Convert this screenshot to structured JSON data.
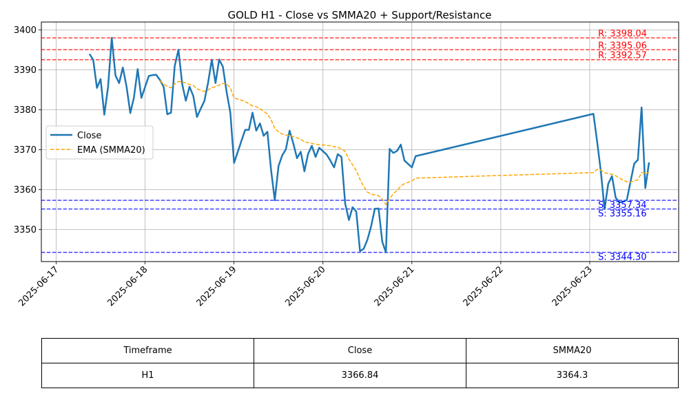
{
  "chart_data": {
    "type": "line",
    "title": "GOLD H1 - Close vs SMMA20 + Support/Resistance",
    "xlabel": "",
    "ylabel": "",
    "ylim": [
      3342,
      3402
    ],
    "xlim": [
      "2025-06-16T20:00",
      "2025-06-24T00:00"
    ],
    "x_ticks": [
      "2025-06-17",
      "2025-06-18",
      "2025-06-19",
      "2025-06-20",
      "2025-06-21",
      "2025-06-22",
      "2025-06-23"
    ],
    "y_ticks": [
      3350,
      3360,
      3370,
      3380,
      3390,
      3400
    ],
    "grid": true,
    "legend_position": "center-left",
    "series": [
      {
        "name": "Close",
        "color": "#1f77b4",
        "style": "solid",
        "points": [
          [
            "2025-06-17T09:00",
            3394.0
          ],
          [
            "2025-06-17T10:00",
            3392.5
          ],
          [
            "2025-06-17T11:00",
            3385.5
          ],
          [
            "2025-06-17T12:00",
            3387.7
          ],
          [
            "2025-06-17T13:00",
            3378.8
          ],
          [
            "2025-06-17T14:00",
            3385.7
          ],
          [
            "2025-06-17T15:00",
            3398.04
          ],
          [
            "2025-06-17T16:00",
            3388.6
          ],
          [
            "2025-06-17T17:00",
            3386.7
          ],
          [
            "2025-06-17T18:00",
            3390.6
          ],
          [
            "2025-06-17T19:00",
            3385.8
          ],
          [
            "2025-06-17T20:00",
            3379.2
          ],
          [
            "2025-06-17T21:00",
            3383.1
          ],
          [
            "2025-06-17T22:00",
            3390.2
          ],
          [
            "2025-06-17T23:00",
            3383.0
          ],
          [
            "2025-06-18T01:00",
            3388.5
          ],
          [
            "2025-06-18T02:00",
            3388.7
          ],
          [
            "2025-06-18T03:00",
            3388.8
          ],
          [
            "2025-06-18T04:00",
            3387.5
          ],
          [
            "2025-06-18T05:00",
            3385.8
          ],
          [
            "2025-06-18T06:00",
            3378.9
          ],
          [
            "2025-06-18T07:00",
            3379.3
          ],
          [
            "2025-06-18T08:00",
            3391.0
          ],
          [
            "2025-06-18T09:00",
            3395.06
          ],
          [
            "2025-06-18T10:00",
            3386.5
          ],
          [
            "2025-06-18T11:00",
            3382.3
          ],
          [
            "2025-06-18T12:00",
            3385.8
          ],
          [
            "2025-06-18T13:00",
            3383.5
          ],
          [
            "2025-06-18T14:00",
            3378.2
          ],
          [
            "2025-06-18T15:00",
            3380.3
          ],
          [
            "2025-06-18T16:00",
            3382.2
          ],
          [
            "2025-06-18T17:00",
            3386.8
          ],
          [
            "2025-06-18T18:00",
            3392.57
          ],
          [
            "2025-06-18T19:00",
            3386.7
          ],
          [
            "2025-06-18T20:00",
            3392.6
          ],
          [
            "2025-06-18T21:00",
            3390.8
          ],
          [
            "2025-06-18T22:00",
            3384.5
          ],
          [
            "2025-06-18T23:00",
            3379.3
          ],
          [
            "2025-06-19T00:00",
            3366.7
          ],
          [
            "2025-06-19T03:00",
            3375.0
          ],
          [
            "2025-06-19T04:00",
            3375.0
          ],
          [
            "2025-06-19T05:00",
            3379.3
          ],
          [
            "2025-06-19T06:00",
            3374.8
          ],
          [
            "2025-06-19T07:00",
            3376.6
          ],
          [
            "2025-06-19T08:00",
            3373.5
          ],
          [
            "2025-06-19T09:00",
            3374.5
          ],
          [
            "2025-06-19T10:00",
            3365.0
          ],
          [
            "2025-06-19T11:00",
            3357.34
          ],
          [
            "2025-06-19T12:00",
            3365.9
          ],
          [
            "2025-06-19T13:00",
            3368.6
          ],
          [
            "2025-06-19T14:00",
            3370.1
          ],
          [
            "2025-06-19T15:00",
            3374.8
          ],
          [
            "2025-06-19T16:00",
            3371.6
          ],
          [
            "2025-06-19T17:00",
            3367.9
          ],
          [
            "2025-06-19T18:00",
            3369.5
          ],
          [
            "2025-06-19T19:00",
            3364.6
          ],
          [
            "2025-06-19T20:00",
            3369.0
          ],
          [
            "2025-06-19T21:00",
            3371.0
          ],
          [
            "2025-06-19T22:00",
            3368.2
          ],
          [
            "2025-06-19T23:00",
            3370.5
          ],
          [
            "2025-06-20T01:00",
            3368.8
          ],
          [
            "2025-06-20T02:00",
            3367.3
          ],
          [
            "2025-06-20T03:00",
            3365.6
          ],
          [
            "2025-06-20T04:00",
            3368.9
          ],
          [
            "2025-06-20T05:00",
            3368.2
          ],
          [
            "2025-06-20T06:00",
            3356.5
          ],
          [
            "2025-06-20T07:00",
            3352.4
          ],
          [
            "2025-06-20T08:00",
            3355.6
          ],
          [
            "2025-06-20T09:00",
            3354.5
          ],
          [
            "2025-06-20T10:00",
            3344.6
          ],
          [
            "2025-06-20T11:00",
            3345.2
          ],
          [
            "2025-06-20T12:00",
            3347.5
          ],
          [
            "2025-06-20T13:00",
            3350.8
          ],
          [
            "2025-06-20T14:00",
            3355.2
          ],
          [
            "2025-06-20T15:00",
            3355.3
          ],
          [
            "2025-06-20T16:00",
            3347.0
          ],
          [
            "2025-06-20T17:00",
            3344.3
          ],
          [
            "2025-06-20T18:00",
            3370.2
          ],
          [
            "2025-06-20T19:00",
            3369.2
          ],
          [
            "2025-06-20T20:00",
            3369.7
          ],
          [
            "2025-06-20T21:00",
            3371.3
          ],
          [
            "2025-06-20T22:00",
            3367.3
          ],
          [
            "2025-06-21T00:00",
            3365.6
          ],
          [
            "2025-06-21T01:00",
            3368.4
          ],
          [
            "2025-06-23T01:00",
            3379.0
          ],
          [
            "2025-06-23T02:00",
            3372.0
          ],
          [
            "2025-06-23T03:00",
            3364.5
          ],
          [
            "2025-06-23T04:00",
            3355.16
          ],
          [
            "2025-06-23T05:00",
            3361.5
          ],
          [
            "2025-06-23T06:00",
            3363.4
          ],
          [
            "2025-06-23T07:00",
            3358.0
          ],
          [
            "2025-06-23T08:00",
            3356.8
          ],
          [
            "2025-06-23T09:00",
            3357.0
          ],
          [
            "2025-06-23T10:00",
            3357.4
          ],
          [
            "2025-06-23T11:00",
            3362.0
          ],
          [
            "2025-06-23T12:00",
            3366.5
          ],
          [
            "2025-06-23T13:00",
            3367.5
          ],
          [
            "2025-06-23T14:00",
            3380.6
          ],
          [
            "2025-06-23T15:00",
            3360.4
          ],
          [
            "2025-06-23T16:00",
            3366.84
          ]
        ]
      },
      {
        "name": "EMA (SMMA20)",
        "color": "#ffa500",
        "style": "dashed",
        "points": [
          [
            "2025-06-18T04:00",
            3387.3
          ],
          [
            "2025-06-18T05:00",
            3386.5
          ],
          [
            "2025-06-18T06:00",
            3385.9
          ],
          [
            "2025-06-18T07:00",
            3385.5
          ],
          [
            "2025-06-18T08:00",
            3386.5
          ],
          [
            "2025-06-18T09:00",
            3387.1
          ],
          [
            "2025-06-18T10:00",
            3387.0
          ],
          [
            "2025-06-18T11:00",
            3386.7
          ],
          [
            "2025-06-18T12:00",
            3386.4
          ],
          [
            "2025-06-18T13:00",
            3386.1
          ],
          [
            "2025-06-18T14:00",
            3385.3
          ],
          [
            "2025-06-18T15:00",
            3384.9
          ],
          [
            "2025-06-18T16:00",
            3384.6
          ],
          [
            "2025-06-18T17:00",
            3385.0
          ],
          [
            "2025-06-18T18:00",
            3385.6
          ],
          [
            "2025-06-18T19:00",
            3385.8
          ],
          [
            "2025-06-18T20:00",
            3386.2
          ],
          [
            "2025-06-18T21:00",
            3386.6
          ],
          [
            "2025-06-18T22:00",
            3386.5
          ],
          [
            "2025-06-18T23:00",
            3385.5
          ],
          [
            "2025-06-19T00:00",
            3383.0
          ],
          [
            "2025-06-19T03:00",
            3382.1
          ],
          [
            "2025-06-19T04:00",
            3381.5
          ],
          [
            "2025-06-19T05:00",
            3381.0
          ],
          [
            "2025-06-19T06:00",
            3380.8
          ],
          [
            "2025-06-19T07:00",
            3380.3
          ],
          [
            "2025-06-19T08:00",
            3379.6
          ],
          [
            "2025-06-19T09:00",
            3379.0
          ],
          [
            "2025-06-19T10:00",
            3377.5
          ],
          [
            "2025-06-19T11:00",
            3375.4
          ],
          [
            "2025-06-19T12:00",
            3374.5
          ],
          [
            "2025-06-19T13:00",
            3373.9
          ],
          [
            "2025-06-19T14:00",
            3373.7
          ],
          [
            "2025-06-19T15:00",
            3373.6
          ],
          [
            "2025-06-19T16:00",
            3373.3
          ],
          [
            "2025-06-19T17:00",
            3373.0
          ],
          [
            "2025-06-19T18:00",
            3372.6
          ],
          [
            "2025-06-19T19:00",
            3372.0
          ],
          [
            "2025-06-19T20:00",
            3371.8
          ],
          [
            "2025-06-19T21:00",
            3371.6
          ],
          [
            "2025-06-19T22:00",
            3371.4
          ],
          [
            "2025-06-19T23:00",
            3371.3
          ],
          [
            "2025-06-20T01:00",
            3371.1
          ],
          [
            "2025-06-20T02:00",
            3371.0
          ],
          [
            "2025-06-20T03:00",
            3370.8
          ],
          [
            "2025-06-20T04:00",
            3370.6
          ],
          [
            "2025-06-20T05:00",
            3370.3
          ],
          [
            "2025-06-20T06:00",
            3369.6
          ],
          [
            "2025-06-20T07:00",
            3367.6
          ],
          [
            "2025-06-20T08:00",
            3366.2
          ],
          [
            "2025-06-20T09:00",
            3364.8
          ],
          [
            "2025-06-20T10:00",
            3362.6
          ],
          [
            "2025-06-20T11:00",
            3360.8
          ],
          [
            "2025-06-20T12:00",
            3359.4
          ],
          [
            "2025-06-20T13:00",
            3358.9
          ],
          [
            "2025-06-20T14:00",
            3358.7
          ],
          [
            "2025-06-20T15:00",
            3358.5
          ],
          [
            "2025-06-20T16:00",
            3357.6
          ],
          [
            "2025-06-20T17:00",
            3356.3
          ],
          [
            "2025-06-20T18:00",
            3357.8
          ],
          [
            "2025-06-20T19:00",
            3359.0
          ],
          [
            "2025-06-20T20:00",
            3359.8
          ],
          [
            "2025-06-20T21:00",
            3360.9
          ],
          [
            "2025-06-20T22:00",
            3361.5
          ],
          [
            "2025-06-21T00:00",
            3362.2
          ],
          [
            "2025-06-21T01:00",
            3362.9
          ],
          [
            "2025-06-23T01:00",
            3364.3
          ],
          [
            "2025-06-23T02:00",
            3365.1
          ],
          [
            "2025-06-23T03:00",
            3364.9
          ],
          [
            "2025-06-23T04:00",
            3364.3
          ],
          [
            "2025-06-23T05:00",
            3364.0
          ],
          [
            "2025-06-23T06:00",
            3363.9
          ],
          [
            "2025-06-23T07:00",
            3363.5
          ],
          [
            "2025-06-23T08:00",
            3362.9
          ],
          [
            "2025-06-23T09:00",
            3362.4
          ],
          [
            "2025-06-23T10:00",
            3362.0
          ],
          [
            "2025-06-23T11:00",
            3361.9
          ],
          [
            "2025-06-23T12:00",
            3362.2
          ],
          [
            "2025-06-23T13:00",
            3362.5
          ],
          [
            "2025-06-23T14:00",
            3364.3
          ],
          [
            "2025-06-23T15:00",
            3364.1
          ],
          [
            "2025-06-23T16:00",
            3364.3
          ]
        ]
      }
    ],
    "levels": [
      {
        "kind": "resistance",
        "value": 3398.04,
        "label": "R: 3398.04",
        "color": "#ff0000"
      },
      {
        "kind": "resistance",
        "value": 3395.06,
        "label": "R: 3395.06",
        "color": "#ff0000"
      },
      {
        "kind": "resistance",
        "value": 3392.57,
        "label": "R: 3392.57",
        "color": "#ff0000"
      },
      {
        "kind": "support",
        "value": 3357.34,
        "label": "S: 3357.34",
        "color": "#0000ff"
      },
      {
        "kind": "support",
        "value": 3355.16,
        "label": "S: 3355.16",
        "color": "#0000ff"
      },
      {
        "kind": "support",
        "value": 3344.3,
        "label": "S: 3344.30",
        "color": "#0000ff"
      }
    ]
  },
  "table": {
    "headers": [
      "Timeframe",
      "Close",
      "SMMA20"
    ],
    "rows": [
      [
        "H1",
        "3366.84",
        "3364.3"
      ]
    ]
  }
}
